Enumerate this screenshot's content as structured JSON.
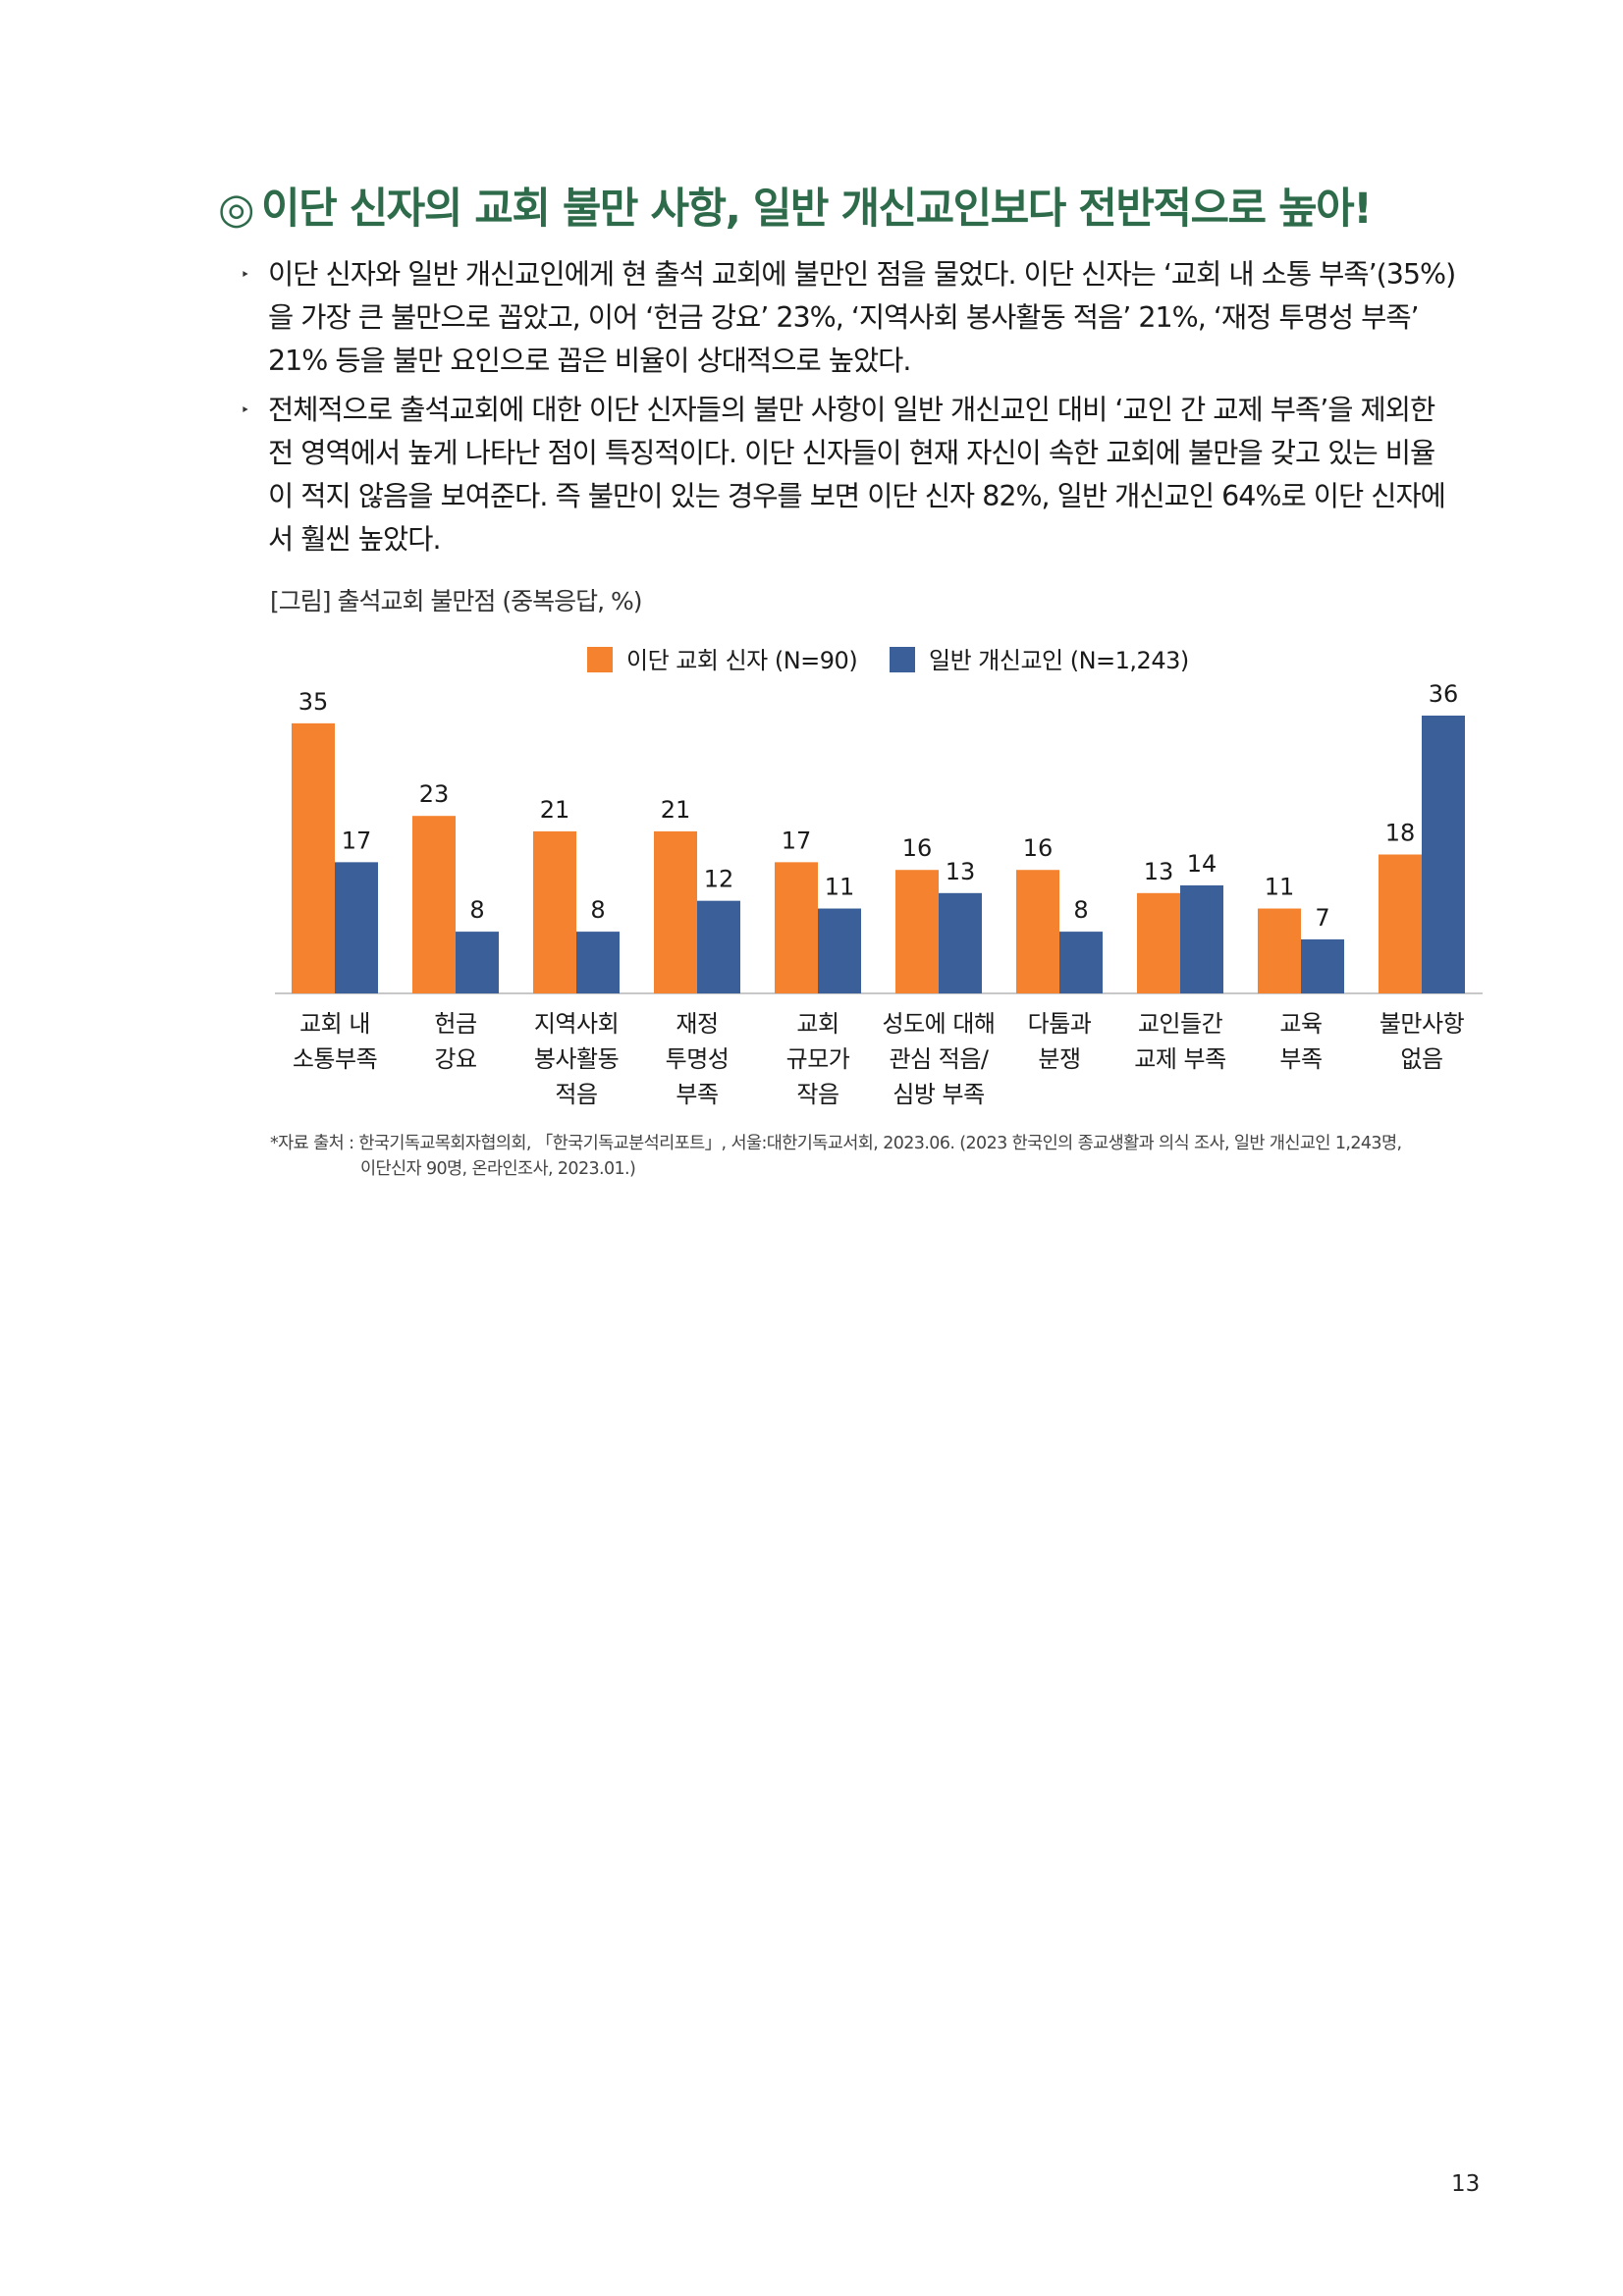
{
  "section_title": {
    "mark": "◎",
    "text": "이단 신자의 교회 불만 사항, 일반 개신교인보다 전반적으로 높아!"
  },
  "bullets": [
    {
      "marker": "‣",
      "lines": [
        "이단 신자와 일반 개신교인에게 현 출석 교회에 불만인 점을 물었다. 이단 신자는 ‘교회 내 소통 부족’(35%)",
        "을 가장 큰 불만으로 꼽았고, 이어 ‘헌금 강요’ 23%, ‘지역사회 봉사활동 적음’ 21%, ‘재정 투명성 부족’",
        "21% 등을 불만 요인으로 꼽은 비율이 상대적으로 높았다."
      ]
    },
    {
      "marker": "‣",
      "lines": [
        "전체적으로 출석교회에 대한 이단 신자들의 불만 사항이 일반 개신교인 대비 ‘교인 간 교제 부족’을 제외한",
        "전 영역에서 높게 나타난 점이 특징적이다. 이단 신자들이 현재 자신이 속한 교회에 불만을 갖고 있는 비율",
        "이 적지 않음을 보여준다. 즉 불만이 있는 경우를 보면 이단 신자 82%, 일반 개신교인 64%로 이단 신자에",
        "서 훨씬 높았다."
      ]
    }
  ],
  "figure_caption": "[그림] 출석교회 불만점 (중복응답, %)",
  "chart_data": {
    "type": "bar",
    "categories": [
      [
        "교회 내",
        "소통부족"
      ],
      [
        "헌금",
        "강요"
      ],
      [
        "지역사회",
        "봉사활동",
        "적음"
      ],
      [
        "재정",
        "투명성",
        "부족"
      ],
      [
        "교회",
        "규모가",
        "작음"
      ],
      [
        "성도에 대해",
        "관심 적음/",
        "심방 부족"
      ],
      [
        "다툼과",
        "분쟁"
      ],
      [
        "교인들간",
        "교제 부족"
      ],
      [
        "교육",
        "부족"
      ],
      [
        "불만사항",
        "없음"
      ]
    ],
    "series": [
      {
        "name": "이단 교회 신자 (N=90)",
        "color": "#f5822f",
        "values": [
          35,
          23,
          21,
          21,
          17,
          16,
          16,
          13,
          11,
          18
        ]
      },
      {
        "name": "일반 개신교인 (N=1,243)",
        "color": "#3b5f98",
        "values": [
          17,
          8,
          8,
          12,
          11,
          13,
          8,
          14,
          7,
          36
        ]
      }
    ],
    "ylim": [
      0,
      36
    ],
    "legend_position": "top-center",
    "grid": false
  },
  "source_note": {
    "line1": "*자료 출처 : 한국기독교목회자협의회, 「한국기독교분석리포트」, 서울:대한기독교서회, 2023.06. (2023 한국인의 종교생활과 의식 조사, 일반 개신교인 1,243명,",
    "line2": "이단신자 90명, 온라인조사, 2023.01.)"
  },
  "page_number": "13"
}
